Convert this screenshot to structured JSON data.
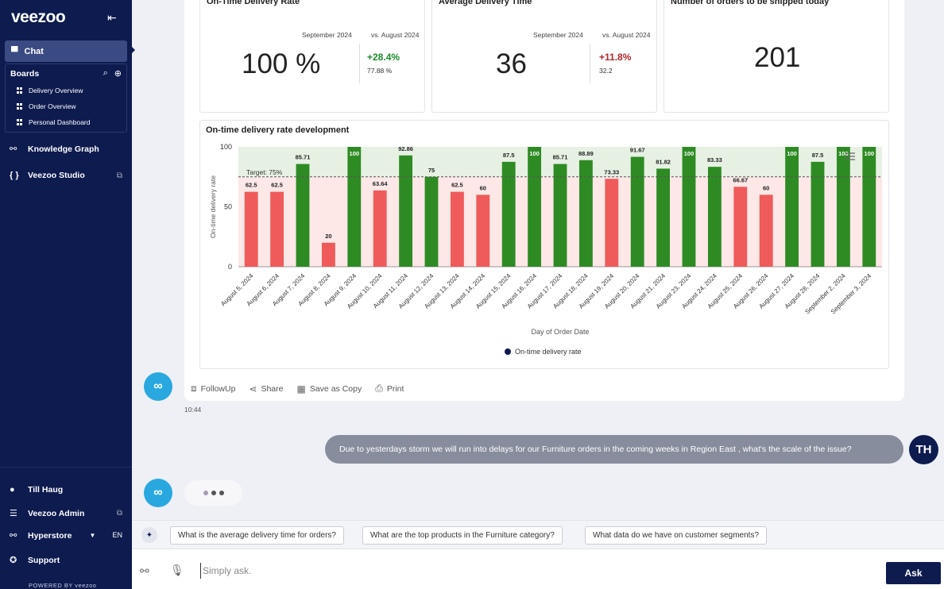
{
  "sidebar": {
    "logo": "veezoo",
    "chat_label": "Chat",
    "boards_label": "Boards",
    "boards": [
      "Delivery Overview",
      "Order Overview",
      "Personal Dashboard"
    ],
    "knowledge_graph": "Knowledge Graph",
    "studio": "Veezoo Studio",
    "user": "Till Haug",
    "admin": "Veezoo Admin",
    "workspace": "Hyperstore",
    "language": "EN",
    "support": "Support",
    "powered_by": "POWERED BY veezoo"
  },
  "kpis": [
    {
      "title": "On-Time Delivery Rate",
      "period": "September 2024",
      "compare": "vs. August 2024",
      "value": "100 %",
      "delta": "+28.4%",
      "prev": "77.88 %"
    },
    {
      "title": "Average Delivery Time",
      "period": "September 2024",
      "compare": "vs. August 2024",
      "value": "36",
      "delta": "+11.8%",
      "prev": "32.2"
    },
    {
      "title": "Number of orders to be shipped today",
      "value": "201"
    }
  ],
  "chart_data": {
    "type": "bar",
    "title": "On-time delivery rate development",
    "xlabel": "Day of Order Date",
    "ylabel": "On-time delivery rate",
    "ylim": [
      0,
      100
    ],
    "yticks": [
      0,
      50,
      100
    ],
    "target": 75,
    "target_label": "Target: 75%",
    "legend": "On-time delivery rate",
    "legend_position": "bottom",
    "colors": {
      "above": "#2e8b24",
      "below": "#ef5a5a",
      "band_above": "#e6f1e3",
      "band_below": "#fde7e7"
    },
    "categories": [
      "August 5, 2024",
      "August 6, 2024",
      "August 7, 2024",
      "August 8, 2024",
      "August 9, 2024",
      "August 10, 2024",
      "August 11, 2024",
      "August 12, 2024",
      "August 13, 2024",
      "August 14, 2024",
      "August 15, 2024",
      "August 16, 2024",
      "August 17, 2024",
      "August 18, 2024",
      "August 19, 2024",
      "August 20, 2024",
      "August 21, 2024",
      "August 23, 2024",
      "August 24, 2024",
      "August 25, 2024",
      "August 26, 2024",
      "August 27, 2024",
      "August 28, 2024",
      "September 2, 2024",
      "September 3, 2024"
    ],
    "values": [
      62.5,
      62.5,
      85.71,
      20,
      100,
      63.64,
      92.86,
      75,
      62.5,
      60,
      87.5,
      100,
      85.71,
      88.89,
      73.33,
      91.67,
      81.82,
      100,
      83.33,
      66.67,
      60,
      100,
      87.5,
      100,
      100
    ],
    "labels": [
      "62.5",
      "62.5",
      "85.71",
      "20",
      "100",
      "63.64",
      "92.86",
      "75",
      "62.5",
      "60",
      "87.5",
      "100",
      "85.71",
      "88.89",
      "73.33",
      "91.67",
      "81.82",
      "100",
      "83.33",
      "66.67",
      "60",
      "100",
      "87.5",
      "100",
      "100"
    ]
  },
  "actions": {
    "followup": "FollowUp",
    "share": "Share",
    "save_copy": "Save as Copy",
    "print": "Print"
  },
  "timestamp": "10:44",
  "user_message": "Due to yesterdays storm we will run into delays for our Furniture orders in the coming weeks in Region East , what's the scale of the issue?",
  "user_initials": "TH",
  "suggestions": [
    "What is the average delivery time for orders?",
    "What are the top products in the Furniture category?",
    "What data do we have on customer segments?"
  ],
  "input": {
    "placeholder": "Simply ask.",
    "ask_label": "Ask"
  }
}
